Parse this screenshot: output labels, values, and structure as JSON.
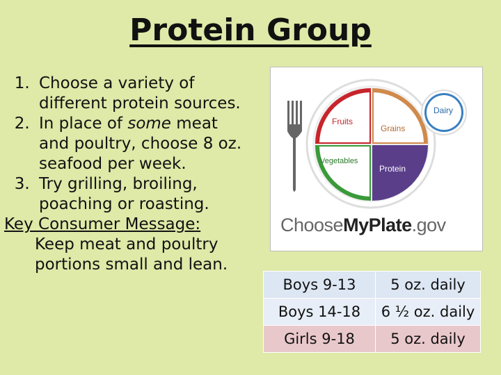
{
  "title": "Protein Group",
  "points": [
    {
      "num": "1.",
      "lines": [
        "Choose a variety of",
        "different protein sources."
      ]
    },
    {
      "num": "2.",
      "before": "In place of ",
      "emph": "some",
      "after": " meat",
      "rest": [
        "and poultry, choose 8 oz.",
        "seafood per week."
      ]
    },
    {
      "num": "3.",
      "lines": [
        "Try grilling, broiling,",
        "poaching or roasting."
      ]
    }
  ],
  "key_message": {
    "label": "Key Consumer Message",
    "colon": ":",
    "lines": [
      "Keep meat and poultry",
      "portions small and lean."
    ]
  },
  "plate": {
    "fruits": "Fruits",
    "grains": "Grains",
    "vegetables": "Vegetables",
    "protein": "Protein",
    "dairy": "Dairy",
    "logo_light_1": "Choose",
    "logo_bold": "MyPlate",
    "logo_light_2": ".gov",
    "colors": {
      "fruits": "#c8242b",
      "grains": "#d08a4b",
      "vegetables": "#3a9a3a",
      "protein": "#5a3e8a",
      "dairy": "#3a7fc0"
    }
  },
  "servings": [
    {
      "group": "Boys 9-13",
      "amount": "5 oz. daily"
    },
    {
      "group": "Boys 14-18",
      "amount": "6 ½ oz. daily"
    },
    {
      "group": "Girls 9-18",
      "amount": "5 oz. daily"
    }
  ]
}
